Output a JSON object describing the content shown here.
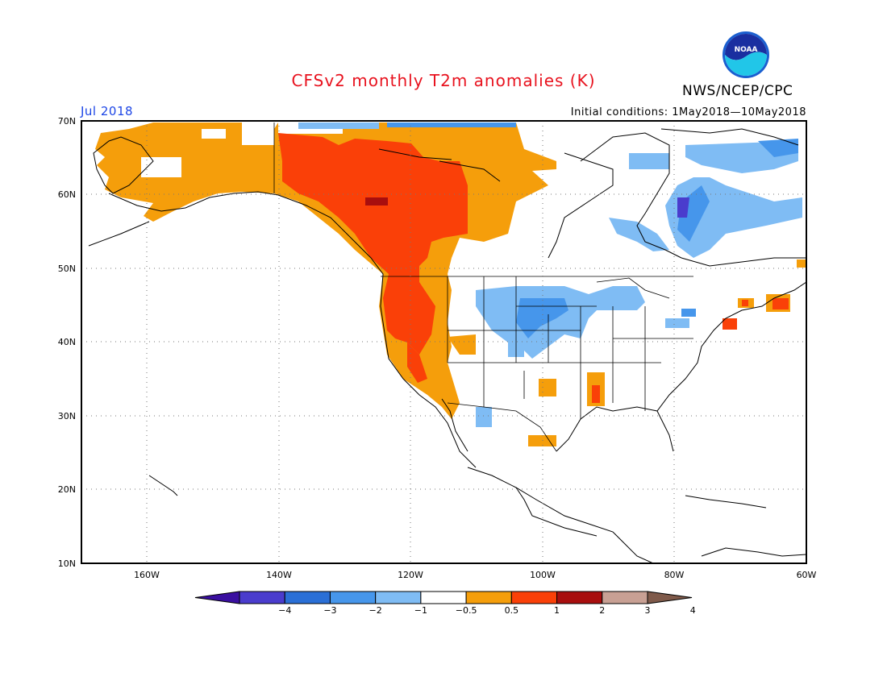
{
  "title": "CFSv2 monthly T2m anomalies (K)",
  "agency": "NWS/NCEP/CPC",
  "logo_text": "NOAA",
  "valid_month": "Jul 2018",
  "initial_conditions": "Initial conditions: 1May2018—10May2018",
  "map": {
    "lon_range": [
      -170,
      -60
    ],
    "lat_range": [
      10,
      70
    ],
    "lat_labels": [
      "70N",
      "60N",
      "50N",
      "40N",
      "30N",
      "20N",
      "10N"
    ],
    "lon_labels": [
      "160W",
      "140W",
      "120W",
      "100W",
      "80W",
      "60W"
    ],
    "grid": "dotted"
  },
  "legend": {
    "tick_labels": [
      "−4",
      "−3",
      "−2",
      "−1",
      "−0.5",
      "0.5",
      "1",
      "2",
      "3",
      "4"
    ],
    "colors": [
      "#3a0fa0",
      "#4a3ccd",
      "#2a6fd6",
      "#4696eb",
      "#7fbcf4",
      "#ffffff",
      "#f59e0b",
      "#fa4008",
      "#a80e0e",
      "#c8a094",
      "#7f5a4a"
    ]
  }
}
